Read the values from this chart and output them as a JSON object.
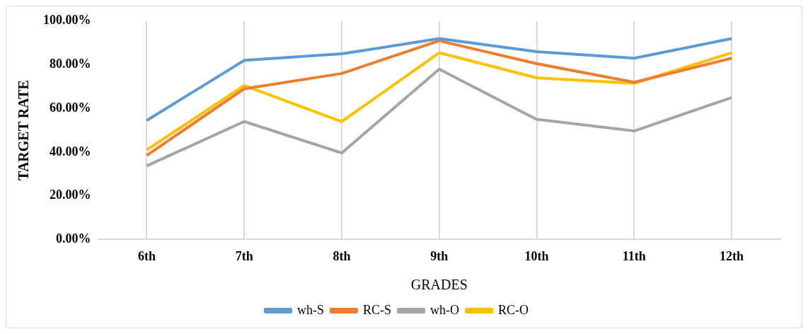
{
  "chart_data": {
    "type": "line",
    "xlabel": "GRADES",
    "ylabel": "TARGET RATE",
    "categories": [
      "6th",
      "7th",
      "8th",
      "9th",
      "10th",
      "11th",
      "12th"
    ],
    "series": [
      {
        "name": "wh-S",
        "color": "#5b9bd5",
        "values": [
          54.5,
          82,
          85,
          92,
          86,
          83,
          92
        ]
      },
      {
        "name": "RC-S",
        "color": "#ed7d31",
        "values": [
          38.5,
          69,
          76,
          91,
          80.5,
          72,
          83
        ]
      },
      {
        "name": "wh-O",
        "color": "#a5a5a5",
        "values": [
          33.7,
          54,
          39.6,
          78,
          55,
          49.7,
          65
        ]
      },
      {
        "name": "RC-O",
        "color": "#ffc000",
        "values": [
          41,
          70.5,
          54,
          85.5,
          74,
          71.5,
          85.5
        ]
      }
    ],
    "ylim": [
      0,
      100
    ],
    "yticks": [
      {
        "value": 0,
        "label": "0.00%"
      },
      {
        "value": 20,
        "label": "20.00%"
      },
      {
        "value": 40,
        "label": "40.00%"
      },
      {
        "value": 60,
        "label": "60.00%"
      },
      {
        "value": 80,
        "label": "80.00%"
      },
      {
        "value": 100,
        "label": "100.00%"
      }
    ],
    "grid": "x",
    "legend": "bottom",
    "marker": "none",
    "line_style": "solid"
  }
}
